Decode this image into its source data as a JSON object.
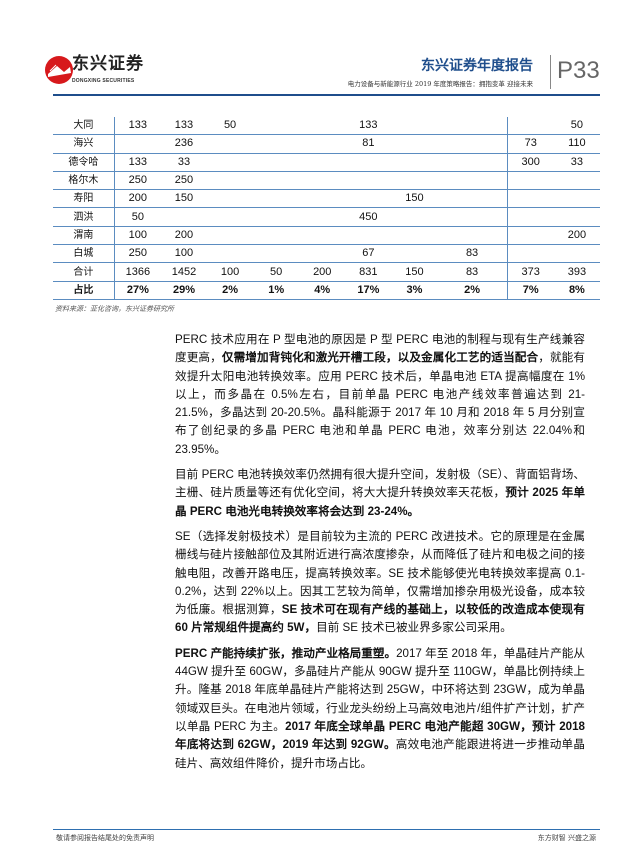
{
  "header": {
    "logo_text": "东兴证券",
    "logo_sub": "DONGXING SECURITIES",
    "title": "东兴证券年度报告",
    "subtitle": "电力设备与新能源行业 2019 年度策略报告：拥抱变革 迎接未来",
    "page": "P33",
    "brand_color": "#1f4e8c",
    "logo_color": "#d7191c"
  },
  "table": {
    "rows": [
      {
        "label": "大同",
        "cells": [
          "133",
          "133",
          "50",
          "",
          "",
          "133",
          "",
          "",
          "",
          "50"
        ]
      },
      {
        "label": "海兴",
        "cells": [
          "",
          "236",
          "",
          "",
          "",
          "81",
          "",
          "",
          "73",
          "110"
        ]
      },
      {
        "label": "德令哈",
        "cells": [
          "133",
          "33",
          "",
          "",
          "",
          "",
          "",
          "",
          "300",
          "33"
        ]
      },
      {
        "label": "格尔木",
        "cells": [
          "250",
          "250",
          "",
          "",
          "",
          "",
          "",
          "",
          "",
          ""
        ]
      },
      {
        "label": "寿阳",
        "cells": [
          "200",
          "150",
          "",
          "",
          "",
          "",
          "150",
          "",
          "",
          ""
        ]
      },
      {
        "label": "泗洪",
        "cells": [
          "50",
          "",
          "",
          "",
          "",
          "450",
          "",
          "",
          "",
          ""
        ]
      },
      {
        "label": "渭南",
        "cells": [
          "100",
          "200",
          "",
          "",
          "",
          "",
          "",
          "",
          "",
          "200"
        ]
      },
      {
        "label": "白城",
        "cells": [
          "250",
          "100",
          "",
          "",
          "",
          "67",
          "",
          "83",
          "",
          ""
        ]
      },
      {
        "label": "合计",
        "cells": [
          "1366",
          "1452",
          "100",
          "50",
          "200",
          "831",
          "150",
          "83",
          "373",
          "393"
        ]
      },
      {
        "label": "占比",
        "cells": [
          "27%",
          "29%",
          "2%",
          "1%",
          "4%",
          "17%",
          "3%",
          "2%",
          "7%",
          "8%"
        ]
      }
    ],
    "source": "资料来源：亚化咨询，东兴证券研究所"
  },
  "paragraphs": [
    [
      {
        "t": "PERC 技术应用在 P 型电池的原因是 P 型 PERC 电池的制程与现有生产线兼容度更高，",
        "b": false
      },
      {
        "t": "仅需增加背钝化和激光开槽工段，以及金属化工艺的适当配合",
        "b": true
      },
      {
        "t": "，就能有效提升太阳电池转换效率。应用 PERC 技术后，单晶电池 ETA 提高幅度在 1%以上，而多晶在 0.5%左右，目前单晶 PERC 电池产线效率普遍达到 21-21.5%，多晶达到 20-20.5%。晶科能源于 2017 年 10 月和 2018 年 5 月分别宣布了创纪录的多晶 PERC 电池和单晶 PERC 电池，效率分别达 22.04%和 23.95%。",
        "b": false
      }
    ],
    [
      {
        "t": "目前 PERC 电池转换效率仍然拥有很大提升空间，发射极（SE）、背面铝背场、主栅、硅片质量等还有优化空间，将大大提升转换效率天花板，",
        "b": false
      },
      {
        "t": "预计 2025 年单晶 PERC 电池光电转换效率将会达到 23-24%。",
        "b": true
      }
    ],
    [
      {
        "t": "SE（选择发射极技术）是目前较为主流的 PERC 改进技术。它的原理是在金属栅线与硅片接触部位及其附近进行高浓度掺杂，从而降低了硅片和电极之间的接触电阻，改善开路电压，提高转换效率。SE 技术能够使光电转换效率提高 0.1-0.2%，达到 22%以上。因其工艺较为简单，仅需增加掺杂用极光设备，成本较为低廉。根据测算，",
        "b": false
      },
      {
        "t": "SE 技术可在现有产线的基础上，以较低的改造成本使现有 60 片常规组件提高约 5W，",
        "b": true
      },
      {
        "t": "目前 SE 技术已被业界多家公司采用。",
        "b": false
      }
    ],
    [
      {
        "t": "PERC 产能持续扩张，推动产业格局重塑。",
        "b": true
      },
      {
        "t": "2017 年至 2018 年，单晶硅片产能从 44GW 提升至 60GW，多晶硅片产能从 90GW 提升至 110GW，单晶比例持续上升。隆基 2018 年底单晶硅片产能将达到 25GW，中环将达到 23GW，成为单晶领域双巨头。在电池片领域，行业龙头纷纷上马高效电池片/组件扩产计划，扩产以单晶 PERC 为主。",
        "b": false
      },
      {
        "t": "2017 年底全球单晶 PERC 电池产能超 30GW，预计 2018 年底将达到 62GW，2019 年达到 92GW。",
        "b": true
      },
      {
        "t": "高效电池产能跟进将进一步推动单晶硅片、高效组件降价，提升市场占比。",
        "b": false
      }
    ]
  ],
  "footer": {
    "left": "敬请参阅报告结尾处的免责声明",
    "right": "东方财智 兴盛之源"
  }
}
